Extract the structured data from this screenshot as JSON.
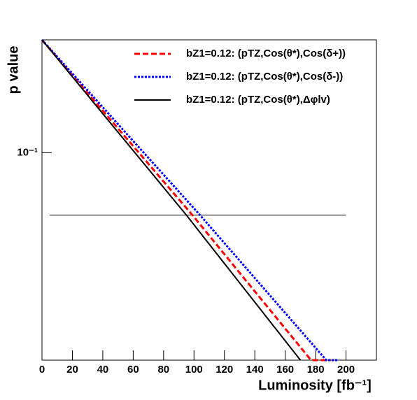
{
  "chart_data": {
    "type": "line",
    "xlabel": "Luminosity [fb⁻¹]",
    "ylabel": "p value",
    "xlim": [
      0,
      220
    ],
    "xticks": [
      0,
      20,
      40,
      60,
      80,
      100,
      120,
      140,
      160,
      180,
      200
    ],
    "ylim": [
      0.01,
      0.35
    ],
    "log_y": true,
    "yticks": [
      {
        "value": 0.1,
        "label": "10⁻¹"
      }
    ],
    "legend": "top-right",
    "hline": {
      "value": 0.05,
      "x": [
        5,
        200
      ],
      "color": "#000000"
    },
    "series": [
      {
        "name": "bZ1=0.12: (pTZ,Cos(θ*),Cos(δ+))",
        "color": "#ff0000",
        "dash": "dashed",
        "x": [
          0,
          99,
          177,
          190
        ],
        "values": [
          0.35,
          0.05,
          0.01,
          0.01
        ]
      },
      {
        "name": "bZ1=0.12: (pTZ,Cos(θ*),Cos(δ-))",
        "color": "#0000ff",
        "dash": "dotted",
        "x": [
          0,
          104,
          187,
          195
        ],
        "values": [
          0.35,
          0.05,
          0.01,
          0.01
        ]
      },
      {
        "name": "bZ1=0.12: (pTZ,Cos(θ*),Δφlv)",
        "color": "#000000",
        "dash": "solid",
        "x": [
          0,
          95,
          170
        ],
        "values": [
          0.35,
          0.05,
          0.01
        ]
      }
    ]
  }
}
